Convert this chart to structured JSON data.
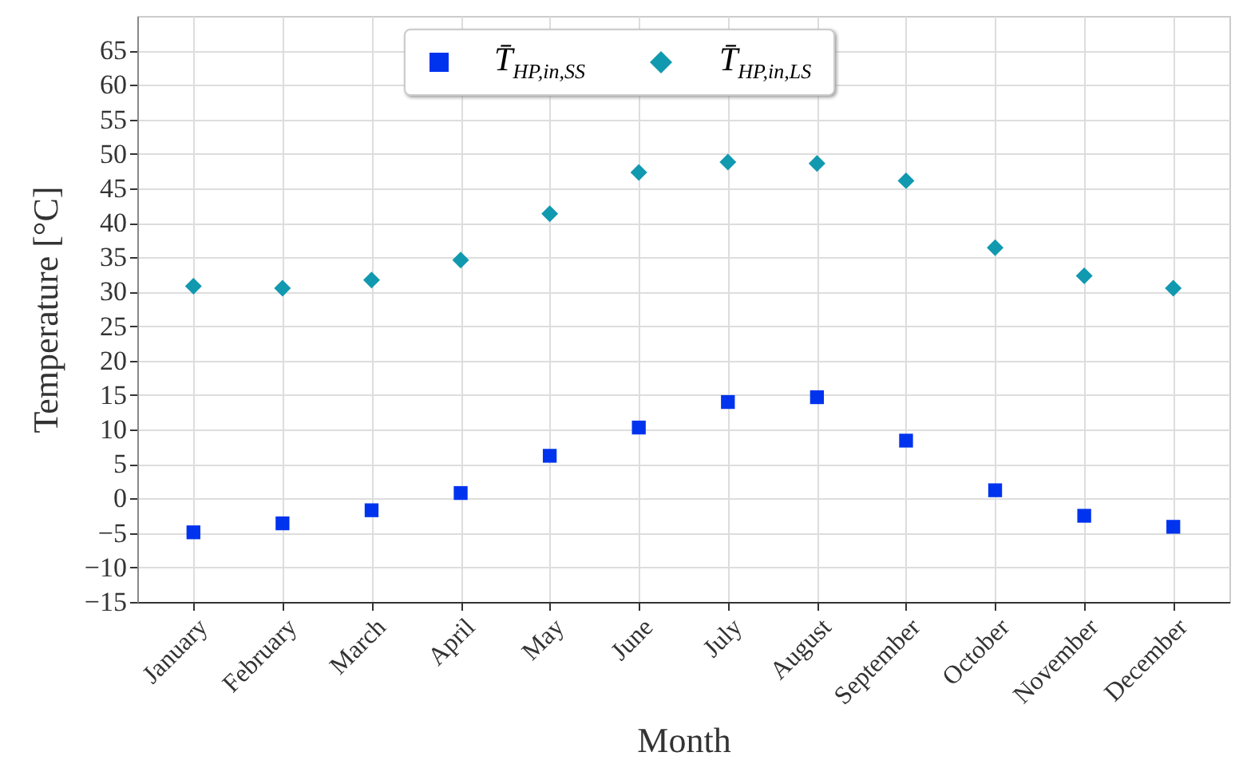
{
  "chart_data": {
    "type": "scatter",
    "xlabel": "Month",
    "ylabel": "Temperature [°C]",
    "categories": [
      "January",
      "February",
      "March",
      "April",
      "May",
      "June",
      "July",
      "August",
      "September",
      "October",
      "November",
      "December"
    ],
    "series": [
      {
        "name": "T̄$_{HP,in,SS}$",
        "color": "#0033ee",
        "marker": "square",
        "values": [
          -4.9,
          -3.6,
          -1.7,
          0.8,
          6.2,
          10.3,
          14.0,
          14.7,
          8.4,
          1.2,
          -2.5,
          -4.1
        ]
      },
      {
        "name": "T̄$_{HP,in,LS}$",
        "color": "#1199b0",
        "marker": "diamond",
        "values": [
          30.8,
          30.5,
          31.7,
          34.6,
          41.3,
          47.3,
          48.8,
          48.6,
          46.1,
          36.4,
          32.3,
          30.5
        ]
      }
    ],
    "ylim": [
      -15,
      70
    ],
    "yticks": [
      -15,
      -10,
      -5,
      0,
      5,
      10,
      15,
      20,
      25,
      30,
      35,
      40,
      45,
      50,
      55,
      60,
      65
    ],
    "grid": true,
    "legend": "top"
  }
}
